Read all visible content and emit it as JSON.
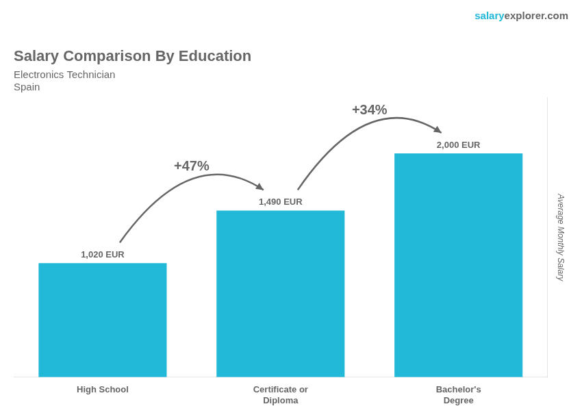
{
  "chart_data": {
    "type": "bar",
    "title": "Salary Comparison By Education",
    "subtitle": "Electronics Technician",
    "country": "Spain",
    "watermark": [
      "salary",
      "explorer.com"
    ],
    "ylabel": "Average Monthly Salary",
    "categories": [
      "High School",
      "Certificate or\nDiploma",
      "Bachelor's\nDegree"
    ],
    "values": [
      1020,
      1490,
      2000
    ],
    "value_labels": [
      "1,020 EUR",
      "1,490 EUR",
      "2,000 EUR"
    ],
    "data_labels": true,
    "annotations": [
      "+47%",
      "+34%"
    ],
    "color": "#22b8d8",
    "ylim": [
      0,
      2500
    ],
    "grid": false,
    "tick_labels": "x"
  }
}
